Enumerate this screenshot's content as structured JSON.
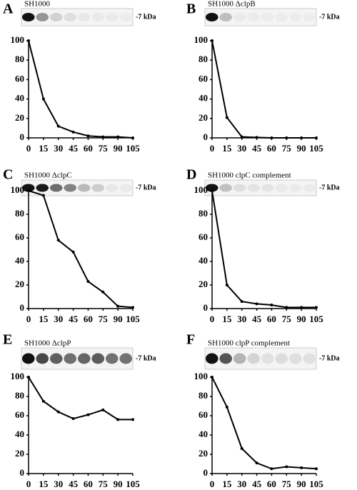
{
  "chart_data": [
    {
      "type": "line",
      "panel": "A",
      "title": "SH1000",
      "blot_label": "-7 kDa",
      "x": [
        0,
        15,
        30,
        45,
        60,
        75,
        90,
        105
      ],
      "values": [
        100,
        40,
        12,
        6,
        2,
        1,
        1,
        0
      ],
      "color": "#000000",
      "xlim": [
        0,
        105
      ],
      "ylim": [
        0,
        100
      ],
      "xticks": [
        0,
        15,
        30,
        45,
        60,
        75,
        90,
        105
      ],
      "yticks": [
        0,
        20,
        40,
        60,
        80,
        100
      ]
    },
    {
      "type": "line",
      "panel": "B",
      "title": "SH1000 ΔclpB",
      "blot_label": "-7 kDa",
      "x": [
        0,
        15,
        30,
        45,
        60,
        75,
        90,
        105
      ],
      "values": [
        100,
        21,
        1,
        0.5,
        0,
        0,
        0,
        0
      ],
      "color": "#000000",
      "xlim": [
        0,
        105
      ],
      "ylim": [
        0,
        100
      ],
      "xticks": [
        0,
        15,
        30,
        45,
        60,
        75,
        90,
        105
      ],
      "yticks": [
        0,
        20,
        40,
        60,
        80,
        100
      ]
    },
    {
      "type": "line",
      "panel": "C",
      "title": "SH1000 ΔclpC",
      "blot_label": "-7 kDa",
      "x": [
        0,
        15,
        30,
        45,
        60,
        75,
        90,
        105
      ],
      "values": [
        100,
        96,
        58,
        48,
        23,
        14,
        2,
        1
      ],
      "color": "#000000",
      "xlim": [
        0,
        105
      ],
      "ylim": [
        0,
        100
      ],
      "xticks": [
        0,
        15,
        30,
        45,
        60,
        75,
        90,
        105
      ],
      "yticks": [
        0,
        20,
        40,
        60,
        80,
        100
      ]
    },
    {
      "type": "line",
      "panel": "D",
      "title": "SH1000 clpC complement",
      "blot_label": "-7 kDa",
      "x": [
        0,
        15,
        30,
        45,
        60,
        75,
        90,
        105
      ],
      "values": [
        100,
        20,
        6,
        4,
        3,
        1,
        1,
        1
      ],
      "color": "#000000",
      "xlim": [
        0,
        105
      ],
      "ylim": [
        0,
        100
      ],
      "xticks": [
        0,
        15,
        30,
        45,
        60,
        75,
        90,
        105
      ],
      "yticks": [
        0,
        20,
        40,
        60,
        80,
        100
      ]
    },
    {
      "type": "line",
      "panel": "E",
      "title": "SH1000 ΔclpP",
      "blot_label": "-7 kDa",
      "x": [
        0,
        15,
        30,
        45,
        60,
        75,
        90,
        105
      ],
      "values": [
        100,
        75,
        64,
        57,
        61,
        66,
        56,
        56
      ],
      "color": "#000000",
      "xlim": [
        0,
        105
      ],
      "ylim": [
        0,
        100
      ],
      "xticks": [
        0,
        15,
        30,
        45,
        60,
        75,
        90,
        105
      ],
      "yticks": [
        0,
        20,
        40,
        60,
        80,
        100
      ]
    },
    {
      "type": "line",
      "panel": "F",
      "title": "SH1000 clpP complement",
      "blot_label": "-7 kDa",
      "x": [
        0,
        15,
        30,
        45,
        60,
        75,
        90,
        105
      ],
      "values": [
        100,
        69,
        26,
        11,
        5,
        7,
        6,
        5
      ],
      "color": "#000000",
      "xlim": [
        0,
        105
      ],
      "ylim": [
        0,
        100
      ],
      "xticks": [
        0,
        15,
        30,
        45,
        60,
        75,
        90,
        105
      ],
      "yticks": [
        0,
        20,
        40,
        60,
        80,
        100
      ]
    }
  ]
}
